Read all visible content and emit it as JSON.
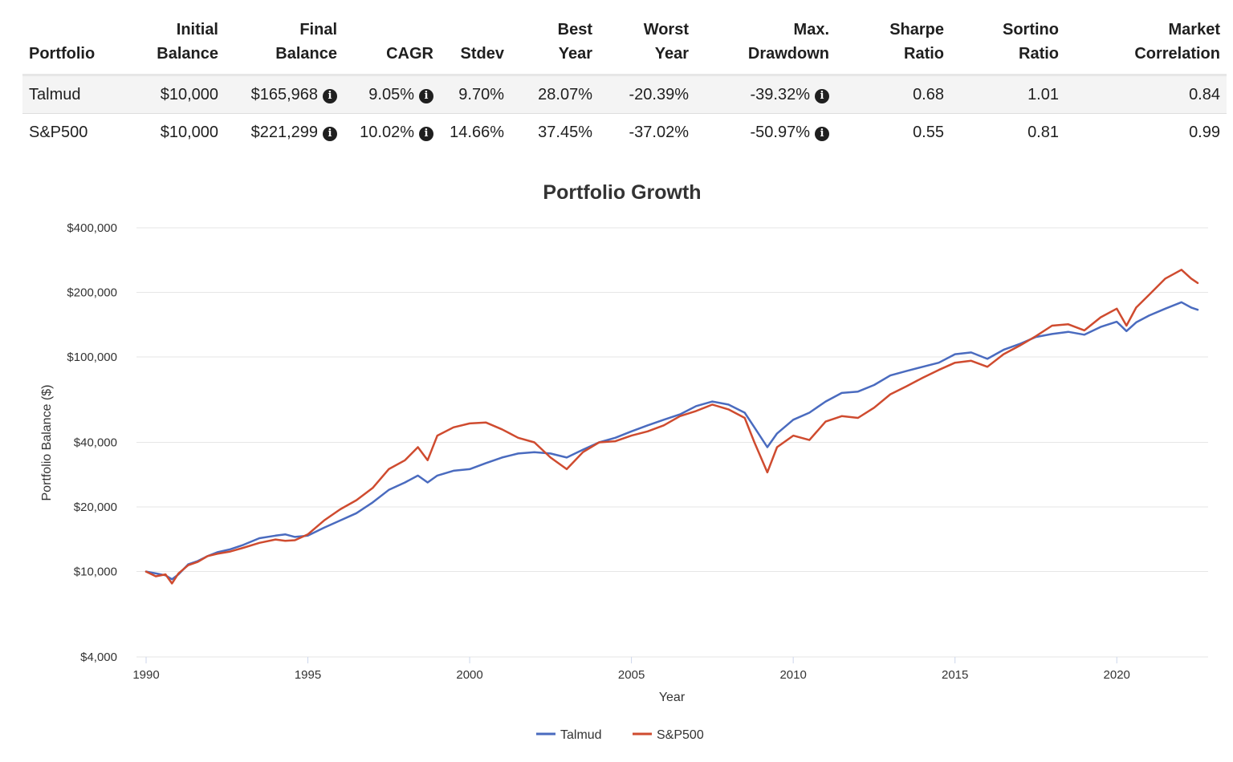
{
  "table": {
    "columns": [
      {
        "key": "portfolio",
        "label_lines": [
          "Portfolio"
        ],
        "align": "left"
      },
      {
        "key": "initial",
        "label_lines": [
          "Initial",
          "Balance"
        ],
        "align": "right"
      },
      {
        "key": "final",
        "label_lines": [
          "Final",
          "Balance"
        ],
        "align": "right"
      },
      {
        "key": "cagr",
        "label_lines": [
          "CAGR"
        ],
        "align": "right"
      },
      {
        "key": "stdev",
        "label_lines": [
          "Stdev"
        ],
        "align": "right"
      },
      {
        "key": "best",
        "label_lines": [
          "Best",
          "Year"
        ],
        "align": "right"
      },
      {
        "key": "worst",
        "label_lines": [
          "Worst",
          "Year"
        ],
        "align": "right"
      },
      {
        "key": "maxdd",
        "label_lines": [
          "Max.",
          "Drawdown"
        ],
        "align": "right"
      },
      {
        "key": "sharpe",
        "label_lines": [
          "Sharpe",
          "Ratio"
        ],
        "align": "right"
      },
      {
        "key": "sortino",
        "label_lines": [
          "Sortino",
          "Ratio"
        ],
        "align": "right"
      },
      {
        "key": "corr",
        "label_lines": [
          "Market",
          "Correlation"
        ],
        "align": "right"
      }
    ],
    "info_icon_columns": [
      "final",
      "cagr",
      "maxdd"
    ],
    "rows": [
      {
        "portfolio": "Talmud",
        "initial": "$10,000",
        "final": "$165,968",
        "cagr": "9.05%",
        "stdev": "9.70%",
        "best": "28.07%",
        "worst": "-20.39%",
        "maxdd": "-39.32%",
        "sharpe": "0.68",
        "sortino": "1.01",
        "corr": "0.84"
      },
      {
        "portfolio": "S&P500",
        "initial": "$10,000",
        "final": "$221,299",
        "cagr": "10.02%",
        "stdev": "14.66%",
        "best": "37.45%",
        "worst": "-37.02%",
        "maxdd": "-50.97%",
        "sharpe": "0.55",
        "sortino": "0.81",
        "corr": "0.99"
      }
    ]
  },
  "chart_data": {
    "type": "line",
    "title": "Portfolio Growth",
    "xlabel": "Year",
    "ylabel": "Portfolio Balance ($)",
    "y_scale": "log",
    "xlim": [
      1990,
      2022.5
    ],
    "ylim": [
      4000,
      400000
    ],
    "x_ticks": [
      1990,
      1995,
      2000,
      2005,
      2010,
      2015,
      2020
    ],
    "y_ticks": [
      {
        "value": 4000,
        "label": "$4,000"
      },
      {
        "value": 10000,
        "label": "$10,000"
      },
      {
        "value": 20000,
        "label": "$20,000"
      },
      {
        "value": 40000,
        "label": "$40,000"
      },
      {
        "value": 100000,
        "label": "$100,000"
      },
      {
        "value": 200000,
        "label": "$200,000"
      },
      {
        "value": 400000,
        "label": "$400,000"
      }
    ],
    "grid": true,
    "legend_position": "bottom-center",
    "series": [
      {
        "name": "Talmud",
        "color": "#4a6bbf",
        "points": [
          [
            1990.0,
            10000
          ],
          [
            1990.3,
            9800
          ],
          [
            1990.6,
            9600
          ],
          [
            1990.8,
            9200
          ],
          [
            1991.0,
            9700
          ],
          [
            1991.3,
            10800
          ],
          [
            1991.6,
            11200
          ],
          [
            1991.9,
            11800
          ],
          [
            1992.2,
            12300
          ],
          [
            1992.6,
            12700
          ],
          [
            1993.0,
            13300
          ],
          [
            1993.5,
            14300
          ],
          [
            1994.0,
            14700
          ],
          [
            1994.3,
            14900
          ],
          [
            1994.6,
            14500
          ],
          [
            1995.0,
            14700
          ],
          [
            1995.5,
            16000
          ],
          [
            1996.0,
            17300
          ],
          [
            1996.5,
            18700
          ],
          [
            1997.0,
            21000
          ],
          [
            1997.5,
            24000
          ],
          [
            1998.0,
            26000
          ],
          [
            1998.4,
            28000
          ],
          [
            1998.7,
            26000
          ],
          [
            1999.0,
            28000
          ],
          [
            1999.5,
            29500
          ],
          [
            2000.0,
            30000
          ],
          [
            2000.5,
            32000
          ],
          [
            2001.0,
            34000
          ],
          [
            2001.5,
            35500
          ],
          [
            2002.0,
            36000
          ],
          [
            2002.5,
            35500
          ],
          [
            2003.0,
            34000
          ],
          [
            2003.5,
            37000
          ],
          [
            2004.0,
            40000
          ],
          [
            2004.5,
            42000
          ],
          [
            2005.0,
            45000
          ],
          [
            2005.5,
            48000
          ],
          [
            2006.0,
            51000
          ],
          [
            2006.5,
            54000
          ],
          [
            2007.0,
            59000
          ],
          [
            2007.5,
            62000
          ],
          [
            2008.0,
            60000
          ],
          [
            2008.5,
            55000
          ],
          [
            2008.8,
            47000
          ],
          [
            2009.2,
            38000
          ],
          [
            2009.5,
            44000
          ],
          [
            2010.0,
            51000
          ],
          [
            2010.5,
            55000
          ],
          [
            2011.0,
            62000
          ],
          [
            2011.5,
            68000
          ],
          [
            2012.0,
            69000
          ],
          [
            2012.5,
            74000
          ],
          [
            2013.0,
            82000
          ],
          [
            2013.5,
            86000
          ],
          [
            2014.0,
            90000
          ],
          [
            2014.5,
            94000
          ],
          [
            2015.0,
            103000
          ],
          [
            2015.5,
            105000
          ],
          [
            2016.0,
            98000
          ],
          [
            2016.5,
            108000
          ],
          [
            2017.0,
            115000
          ],
          [
            2017.5,
            124000
          ],
          [
            2018.0,
            128000
          ],
          [
            2018.5,
            131000
          ],
          [
            2019.0,
            127000
          ],
          [
            2019.5,
            138000
          ],
          [
            2020.0,
            146000
          ],
          [
            2020.3,
            132000
          ],
          [
            2020.6,
            145000
          ],
          [
            2021.0,
            156000
          ],
          [
            2021.5,
            168000
          ],
          [
            2022.0,
            180000
          ],
          [
            2022.3,
            170000
          ],
          [
            2022.5,
            165968
          ]
        ]
      },
      {
        "name": "S&P500",
        "color": "#cf4b2f",
        "points": [
          [
            1990.0,
            10000
          ],
          [
            1990.3,
            9500
          ],
          [
            1990.6,
            9700
          ],
          [
            1990.8,
            8800
          ],
          [
            1991.0,
            9800
          ],
          [
            1991.3,
            10700
          ],
          [
            1991.6,
            11100
          ],
          [
            1991.9,
            11800
          ],
          [
            1992.2,
            12100
          ],
          [
            1992.6,
            12400
          ],
          [
            1993.0,
            12900
          ],
          [
            1993.5,
            13600
          ],
          [
            1994.0,
            14100
          ],
          [
            1994.3,
            13900
          ],
          [
            1994.6,
            14000
          ],
          [
            1995.0,
            14900
          ],
          [
            1995.5,
            17300
          ],
          [
            1996.0,
            19500
          ],
          [
            1996.5,
            21500
          ],
          [
            1997.0,
            24500
          ],
          [
            1997.5,
            30000
          ],
          [
            1998.0,
            33000
          ],
          [
            1998.4,
            38000
          ],
          [
            1998.7,
            33000
          ],
          [
            1999.0,
            43000
          ],
          [
            1999.5,
            47000
          ],
          [
            2000.0,
            49000
          ],
          [
            2000.5,
            49500
          ],
          [
            2001.0,
            46000
          ],
          [
            2001.5,
            42000
          ],
          [
            2002.0,
            40000
          ],
          [
            2002.5,
            34000
          ],
          [
            2003.0,
            30000
          ],
          [
            2003.5,
            36000
          ],
          [
            2004.0,
            40000
          ],
          [
            2004.5,
            40500
          ],
          [
            2005.0,
            43000
          ],
          [
            2005.5,
            45000
          ],
          [
            2006.0,
            48000
          ],
          [
            2006.5,
            53000
          ],
          [
            2007.0,
            56000
          ],
          [
            2007.5,
            60000
          ],
          [
            2008.0,
            57000
          ],
          [
            2008.5,
            52000
          ],
          [
            2008.8,
            40000
          ],
          [
            2009.2,
            29000
          ],
          [
            2009.5,
            38000
          ],
          [
            2010.0,
            43000
          ],
          [
            2010.5,
            41000
          ],
          [
            2011.0,
            50000
          ],
          [
            2011.5,
            53000
          ],
          [
            2012.0,
            52000
          ],
          [
            2012.5,
            58000
          ],
          [
            2013.0,
            67000
          ],
          [
            2013.5,
            73000
          ],
          [
            2014.0,
            80000
          ],
          [
            2014.5,
            87000
          ],
          [
            2015.0,
            94000
          ],
          [
            2015.5,
            96000
          ],
          [
            2016.0,
            90000
          ],
          [
            2016.5,
            103000
          ],
          [
            2017.0,
            113000
          ],
          [
            2017.5,
            125000
          ],
          [
            2018.0,
            140000
          ],
          [
            2018.5,
            142000
          ],
          [
            2019.0,
            133000
          ],
          [
            2019.5,
            153000
          ],
          [
            2020.0,
            168000
          ],
          [
            2020.3,
            140000
          ],
          [
            2020.6,
            170000
          ],
          [
            2021.0,
            195000
          ],
          [
            2021.5,
            232000
          ],
          [
            2022.0,
            255000
          ],
          [
            2022.3,
            232000
          ],
          [
            2022.5,
            221299
          ]
        ]
      }
    ]
  }
}
